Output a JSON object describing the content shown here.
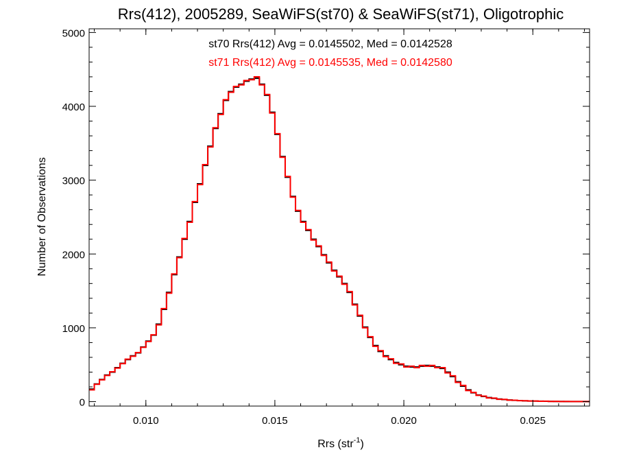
{
  "chart_data": {
    "type": "line",
    "style": "step histogram",
    "title": "Rrs(412), 2005289, SeaWiFS(st70) & SeaWiFS(st71), Oligotrophic",
    "xlabel_main": "Rrs (str",
    "xlabel_sup": "-1",
    "xlabel_end": ")",
    "ylabel": "Number of Observations",
    "xlim": [
      0.0078,
      0.0272
    ],
    "ylim": [
      -60,
      5050
    ],
    "xticks": [
      0.01,
      0.015,
      0.02,
      0.025
    ],
    "xtick_labels": [
      "0.010",
      "0.015",
      "0.020",
      "0.025"
    ],
    "yticks": [
      0,
      1000,
      2000,
      3000,
      4000,
      5000
    ],
    "ytick_labels": [
      "0",
      "1000",
      "2000",
      "3000",
      "4000",
      "5000"
    ],
    "annotations": [
      {
        "text": "st70 Rrs(412) Avg = 0.0145502, Med = 0.0142528",
        "color": "#000000"
      },
      {
        "text": "st71 Rrs(412) Avg = 0.0145535, Med = 0.0142580",
        "color": "#ff0000"
      }
    ],
    "series": [
      {
        "id": "st70",
        "color": "#000000",
        "x": [
          0.0078,
          0.008,
          0.0082,
          0.0084,
          0.0086,
          0.0088,
          0.009,
          0.0092,
          0.0094,
          0.0096,
          0.0098,
          0.01,
          0.0102,
          0.0104,
          0.0106,
          0.0108,
          0.011,
          0.0112,
          0.0114,
          0.0116,
          0.0118,
          0.012,
          0.0122,
          0.0124,
          0.0126,
          0.0128,
          0.013,
          0.0132,
          0.0134,
          0.0136,
          0.0138,
          0.014,
          0.0142,
          0.0144,
          0.0146,
          0.0148,
          0.015,
          0.0152,
          0.0154,
          0.0156,
          0.0158,
          0.016,
          0.0162,
          0.0164,
          0.0166,
          0.0168,
          0.017,
          0.0172,
          0.0174,
          0.0176,
          0.0178,
          0.018,
          0.0182,
          0.0184,
          0.0186,
          0.0188,
          0.019,
          0.0192,
          0.0194,
          0.0196,
          0.0198,
          0.02,
          0.0202,
          0.0204,
          0.0206,
          0.0208,
          0.021,
          0.0212,
          0.0214,
          0.0216,
          0.0218,
          0.022,
          0.0222,
          0.0224,
          0.0226,
          0.0228,
          0.023,
          0.0232,
          0.0234,
          0.0236,
          0.0238,
          0.024,
          0.0242,
          0.0244,
          0.0246,
          0.0248,
          0.025,
          0.0252,
          0.0254,
          0.0256,
          0.0258,
          0.026,
          0.0262,
          0.0264,
          0.0266,
          0.0268,
          0.027
        ],
        "y": [
          170,
          240,
          300,
          360,
          400,
          460,
          520,
          570,
          620,
          660,
          740,
          820,
          900,
          1050,
          1250,
          1480,
          1720,
          1960,
          2200,
          2440,
          2700,
          2950,
          3200,
          3460,
          3700,
          3900,
          4080,
          4200,
          4260,
          4300,
          4340,
          4370,
          4380,
          4300,
          4150,
          3920,
          3620,
          3320,
          3040,
          2780,
          2580,
          2440,
          2320,
          2200,
          2100,
          1990,
          1880,
          1780,
          1690,
          1600,
          1480,
          1320,
          1160,
          1010,
          870,
          760,
          680,
          620,
          570,
          530,
          500,
          480,
          470,
          470,
          480,
          490,
          480,
          470,
          450,
          400,
          340,
          270,
          210,
          160,
          120,
          90,
          70,
          55,
          45,
          35,
          28,
          22,
          18,
          14,
          11,
          9,
          7,
          6,
          5,
          4,
          3,
          3,
          2,
          2,
          1,
          1,
          1
        ]
      },
      {
        "id": "st71",
        "color": "#ff0000",
        "x": [
          0.0078,
          0.008,
          0.0082,
          0.0084,
          0.0086,
          0.0088,
          0.009,
          0.0092,
          0.0094,
          0.0096,
          0.0098,
          0.01,
          0.0102,
          0.0104,
          0.0106,
          0.0108,
          0.011,
          0.0112,
          0.0114,
          0.0116,
          0.0118,
          0.012,
          0.0122,
          0.0124,
          0.0126,
          0.0128,
          0.013,
          0.0132,
          0.0134,
          0.0136,
          0.0138,
          0.014,
          0.0142,
          0.0144,
          0.0146,
          0.0148,
          0.015,
          0.0152,
          0.0154,
          0.0156,
          0.0158,
          0.016,
          0.0162,
          0.0164,
          0.0166,
          0.0168,
          0.017,
          0.0172,
          0.0174,
          0.0176,
          0.0178,
          0.018,
          0.0182,
          0.0184,
          0.0186,
          0.0188,
          0.019,
          0.0192,
          0.0194,
          0.0196,
          0.0198,
          0.02,
          0.0202,
          0.0204,
          0.0206,
          0.0208,
          0.021,
          0.0212,
          0.0214,
          0.0216,
          0.0218,
          0.022,
          0.0222,
          0.0224,
          0.0226,
          0.0228,
          0.023,
          0.0232,
          0.0234,
          0.0236,
          0.0238,
          0.024,
          0.0242,
          0.0244,
          0.0246,
          0.0248,
          0.025,
          0.0252,
          0.0254,
          0.0256,
          0.0258,
          0.026,
          0.0262,
          0.0264,
          0.0266,
          0.0268,
          0.027
        ],
        "y": [
          160,
          235,
          295,
          355,
          405,
          455,
          515,
          575,
          615,
          665,
          735,
          815,
          905,
          1040,
          1260,
          1470,
          1730,
          1950,
          2210,
          2430,
          2710,
          2940,
          3210,
          3450,
          3710,
          3890,
          4090,
          4190,
          4270,
          4290,
          4350,
          4360,
          4400,
          4290,
          4160,
          3910,
          3630,
          3310,
          3050,
          2770,
          2590,
          2430,
          2330,
          2190,
          2110,
          1980,
          1890,
          1770,
          1700,
          1590,
          1490,
          1310,
          1170,
          1000,
          880,
          750,
          690,
          610,
          580,
          520,
          510,
          470,
          480,
          460,
          490,
          480,
          490,
          460,
          460,
          390,
          350,
          260,
          220,
          150,
          125,
          85,
          75,
          50,
          48,
          32,
          30,
          20,
          19,
          13,
          12,
          8,
          8,
          5,
          6,
          3,
          4,
          2,
          3,
          1,
          2,
          1,
          1
        ]
      }
    ]
  }
}
